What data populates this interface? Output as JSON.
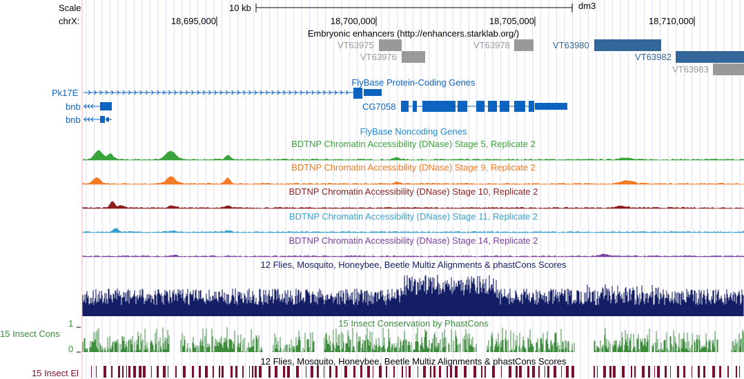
{
  "genome": {
    "scale_label": "Scale",
    "chrom_label": "chrX:",
    "scale_bar_text": "10 kb",
    "assembly": "dm3",
    "ticks": [
      "18,695,000",
      "18,700,000",
      "18,705,000",
      "18,710,000"
    ]
  },
  "tracks": {
    "enhancers": {
      "title": "Embryonic enhancers (http://enhancers.starklab.org/)",
      "items": [
        {
          "name": "VT63975",
          "color": "#999999"
        },
        {
          "name": "VT63976",
          "color": "#999999"
        },
        {
          "name": "VT63978",
          "color": "#999999"
        },
        {
          "name": "VT63980",
          "color": "#336699"
        },
        {
          "name": "VT63982",
          "color": "#336699"
        },
        {
          "name": "VT63983",
          "color": "#999999"
        }
      ]
    },
    "protein_genes": {
      "title": "FlyBase Protein-Coding Genes",
      "color": "#0c64c0",
      "genes": [
        "Pk17E",
        "bnb",
        "bnb",
        "CG7058"
      ]
    },
    "noncoding_genes": {
      "title": "FlyBase Noncoding Genes",
      "color": "#1e8bd2"
    },
    "dnase": [
      {
        "title": "BDTNP Chromatin Accessibility (DNase) Stage 5, Replicate 2",
        "color": "#3ba33b"
      },
      {
        "title": "BDTNP Chromatin Accessibility (DNase) Stage 9, Replicate 2",
        "color": "#f27b24"
      },
      {
        "title": "BDTNP Chromatin Accessibility (DNase) Stage 10, Replicate 2",
        "color": "#8c1d1d"
      },
      {
        "title": "BDTNP Chromatin Accessibility (DNase) Stage 11, Replicate 2",
        "color": "#3aa0d0"
      },
      {
        "title": "BDTNP Chromatin Accessibility (DNase) Stage 14, Replicate 2",
        "color": "#7c3ea0"
      }
    ],
    "multiz": {
      "title": "12 Flies, Mosquito, Honeybee, Beetle Multiz Alignments & phastCons Scores",
      "color": "#141e64"
    },
    "insect_cons": {
      "title": "15 Insect Conservation by PhastCons",
      "side_label": "15 Insect Cons",
      "axis_max": "1",
      "axis_min": "0",
      "color": "#3c8c3c"
    },
    "insect_el": {
      "title": "12 Flies, Mosquito, Honeybee, Beetle Multiz Alignments & phastCons Scores",
      "side_label": "15 Insect El",
      "color": "#7a1030"
    }
  }
}
